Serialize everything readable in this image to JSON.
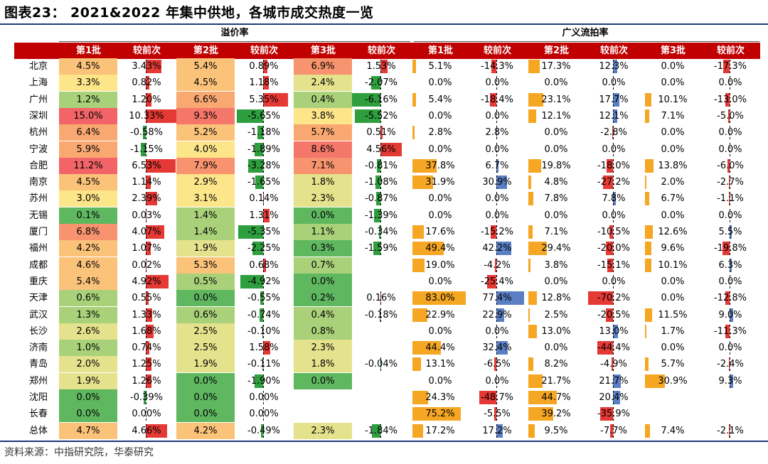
{
  "title": "图表23： 2021&2022 年集中供地，各城市成交热度一览",
  "source": "资料来源：中指研究院，华泰研究",
  "chart_data": {
    "type": "table",
    "groups": [
      "溢价率",
      "广义流拍率"
    ],
    "columns": [
      "第1批",
      "较前次",
      "第2批",
      "较前次",
      "第3批",
      "较前次",
      "第1批",
      "较前次",
      "第2批",
      "较前次",
      "第3批",
      "较前次"
    ],
    "cities": [
      "北京",
      "上海",
      "广州",
      "深圳",
      "杭州",
      "宁波",
      "合肥",
      "南京",
      "苏州",
      "无锡",
      "厦门",
      "福州",
      "成都",
      "重庆",
      "天津",
      "武汉",
      "长沙",
      "济南",
      "青岛",
      "郑州",
      "沈阳",
      "长春",
      "总体"
    ],
    "rows": [
      [
        "4.5%",
        "3.43%",
        "5.4%",
        "0.89%",
        "6.9%",
        "1.53%",
        "5.1%",
        "-14.3%",
        "17.3%",
        "12.3%",
        "0.0%",
        "-17.3%"
      ],
      [
        "3.3%",
        "0.82%",
        "4.5%",
        "1.18%",
        "2.4%",
        "-2.07%",
        "0.0%",
        "0.0%",
        "0.0%",
        "0.0%",
        "0.0%",
        "0.0%"
      ],
      [
        "1.2%",
        "1.20%",
        "6.6%",
        "5.35%",
        "0.4%",
        "-6.16%",
        "5.4%",
        "-18.4%",
        "23.1%",
        "17.7%",
        "10.1%",
        "-13.0%"
      ],
      [
        "15.0%",
        "10.33%",
        "9.3%",
        "-5.65%",
        "3.8%",
        "-5.52%",
        "0.0%",
        "0.0%",
        "12.1%",
        "12.1%",
        "7.1%",
        "-5.0%"
      ],
      [
        "6.4%",
        "-0.58%",
        "5.2%",
        "-1.18%",
        "5.7%",
        "0.51%",
        "2.8%",
        "2.8%",
        "0.0%",
        "-2.8%",
        "0.0%",
        "0.0%"
      ],
      [
        "5.9%",
        "-1.15%",
        "4.0%",
        "-1.89%",
        "8.6%",
        "4.56%",
        "0.0%",
        "0.0%",
        "0.0%",
        "0.0%",
        "0.0%",
        "0.0%"
      ],
      [
        "11.2%",
        "6.53%",
        "7.9%",
        "-3.28%",
        "7.1%",
        "-0.81%",
        "37.8%",
        "6.7%",
        "19.8%",
        "-18.0%",
        "13.8%",
        "-6.0%"
      ],
      [
        "4.5%",
        "1.14%",
        "2.9%",
        "-1.65%",
        "1.8%",
        "-1.08%",
        "31.9%",
        "30.9%",
        "4.8%",
        "-27.2%",
        "2.0%",
        "-2.7%"
      ],
      [
        "3.0%",
        "2.39%",
        "3.1%",
        "0.14%",
        "2.3%",
        "-0.87%",
        "0.0%",
        "0.0%",
        "7.8%",
        "7.8%",
        "6.7%",
        "-1.1%"
      ],
      [
        "0.1%",
        "0.03%",
        "1.4%",
        "1.31%",
        "0.0%",
        "-1.39%",
        "0.0%",
        "0.0%",
        "0.0%",
        "0.0%",
        "0.0%",
        "0.0%"
      ],
      [
        "6.8%",
        "4.07%",
        "1.4%",
        "-5.35%",
        "1.1%",
        "-0.34%",
        "17.6%",
        "-15.2%",
        "7.1%",
        "-10.5%",
        "12.6%",
        "5.5%"
      ],
      [
        "4.2%",
        "1.07%",
        "1.9%",
        "-2.25%",
        "0.3%",
        "-1.59%",
        "49.4%",
        "42.2%",
        "29.4%",
        "-20.0%",
        "9.6%",
        "-19.8%"
      ],
      [
        "4.6%",
        "0.02%",
        "5.3%",
        "0.68%",
        "0.7%",
        "",
        "19.0%",
        "-4.2%",
        "3.8%",
        "-15.1%",
        "10.1%",
        "6.3%"
      ],
      [
        "5.4%",
        "4.92%",
        "0.5%",
        "-4.92%",
        "0.0%",
        "",
        "0.0%",
        "-25.4%",
        "0.0%",
        "0.0%",
        "0.0%",
        "0.0%"
      ],
      [
        "0.6%",
        "0.55%",
        "0.0%",
        "-0.55%",
        "0.2%",
        "0.16%",
        "83.0%",
        "77.4%",
        "12.8%",
        "-70.2%",
        "0.0%",
        "-12.8%"
      ],
      [
        "1.3%",
        "1.33%",
        "0.6%",
        "-0.74%",
        "0.4%",
        "-0.18%",
        "22.9%",
        "22.9%",
        "2.5%",
        "-20.5%",
        "11.5%",
        "9.0%"
      ],
      [
        "2.6%",
        "1.68%",
        "2.5%",
        "-0.10%",
        "0.8%",
        "",
        "0.0%",
        "0.0%",
        "13.0%",
        "13.0%",
        "1.7%",
        "-11.3%"
      ],
      [
        "1.0%",
        "0.74%",
        "2.5%",
        "1.58%",
        "2.3%",
        "",
        "44.4%",
        "32.4%",
        "0.0%",
        "-44.4%",
        "0.0%",
        "0.0%"
      ],
      [
        "2.0%",
        "1.25%",
        "1.9%",
        "-0.11%",
        "1.8%",
        "-0.04%",
        "13.1%",
        "-6.5%",
        "8.2%",
        "-4.9%",
        "5.7%",
        "-2.4%"
      ],
      [
        "1.9%",
        "1.26%",
        "0.0%",
        "-1.90%",
        "0.0%",
        "",
        "0.0%",
        "0.0%",
        "21.7%",
        "21.7%",
        "30.9%",
        "9.3%"
      ],
      [
        "0.0%",
        "-0.39%",
        "0.0%",
        "0.00%",
        "",
        "",
        "24.3%",
        "-48.7%",
        "44.7%",
        "20.4%",
        "",
        ""
      ],
      [
        "0.0%",
        "0.00%",
        "0.0%",
        "0.00%",
        "",
        "",
        "75.2%",
        "-5.5%",
        "39.2%",
        "-35.9%",
        "",
        ""
      ],
      [
        "4.7%",
        "4.66%",
        "4.2%",
        "-0.49%",
        "2.3%",
        "-1.84%",
        "17.2%",
        "17.2%",
        "9.5%",
        "-7.7%",
        "7.4%",
        "-2.1%"
      ]
    ],
    "colors": {
      "header": "#c00000",
      "bar_pos_small": "#e53935",
      "bar_neg_small": "#2e9e3e",
      "bar_orange": "#f5a623",
      "bar_blue": "#5b7fc4",
      "bar_red": "#e53935"
    }
  }
}
